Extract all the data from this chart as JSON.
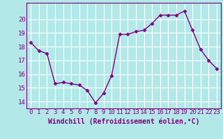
{
  "x": [
    0,
    1,
    2,
    3,
    4,
    5,
    6,
    7,
    8,
    9,
    10,
    11,
    12,
    13,
    14,
    15,
    16,
    17,
    18,
    19,
    20,
    21,
    22,
    23
  ],
  "y": [
    18.3,
    17.7,
    17.5,
    15.3,
    15.4,
    15.3,
    15.2,
    14.8,
    13.9,
    14.6,
    15.9,
    18.9,
    18.9,
    19.1,
    19.2,
    19.7,
    20.3,
    20.3,
    20.3,
    20.6,
    19.2,
    17.8,
    17.0,
    16.4
  ],
  "line_color": "#800080",
  "marker": "D",
  "markersize": 2.5,
  "linewidth": 1.0,
  "bg_color": "#b3e8e8",
  "grid_color": "#ffffff",
  "xlabel": "Windchill (Refroidissement éolien,°C)",
  "xlabel_fontsize": 7,
  "tick_color": "#800080",
  "tick_fontsize": 6.5,
  "ylim": [
    13.5,
    21.2
  ],
  "xlim": [
    -0.5,
    23.5
  ],
  "yticks": [
    14,
    15,
    16,
    17,
    18,
    19,
    20
  ],
  "xticks": [
    0,
    1,
    2,
    3,
    4,
    5,
    6,
    7,
    8,
    9,
    10,
    11,
    12,
    13,
    14,
    15,
    16,
    17,
    18,
    19,
    20,
    21,
    22,
    23
  ]
}
